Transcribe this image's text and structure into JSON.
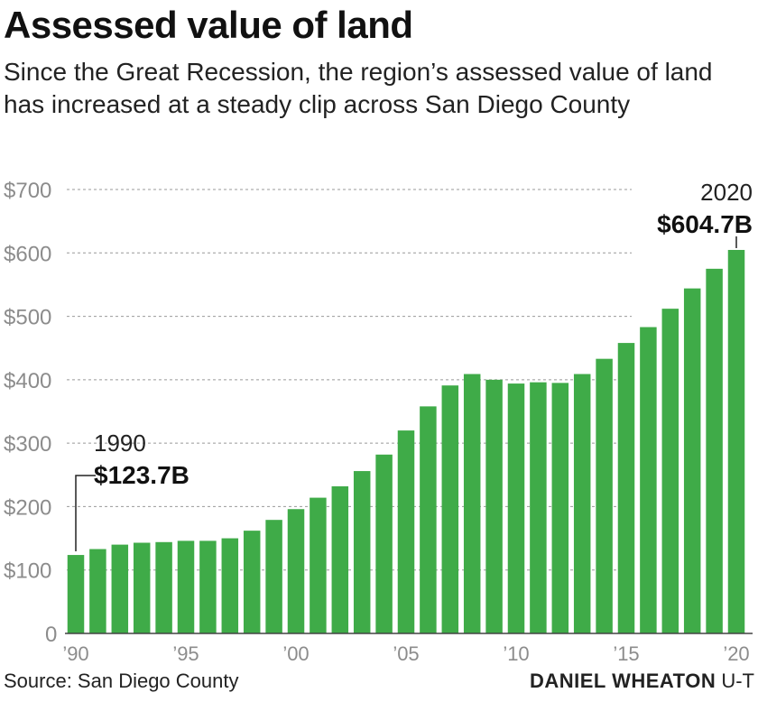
{
  "header": {
    "title": "Assessed value of land",
    "subtitle": "Since the Great Recession, the region’s assessed value of land has increased at a steady clip across San Diego County"
  },
  "footer": {
    "source": "Source: San Diego County",
    "credit_name": "DANIEL WHEATON",
    "credit_org": "U-T"
  },
  "colors": {
    "bar": "#3fab48",
    "grid": "#999999",
    "axis_text": "#8c8c8c"
  },
  "chart_data": {
    "type": "bar",
    "title": "Assessed value of land",
    "xlabel": "",
    "ylabel": "",
    "ylim": [
      0,
      700
    ],
    "yticks": [
      0,
      100,
      200,
      300,
      400,
      500,
      600,
      700
    ],
    "ytick_labels": [
      "0",
      "$100",
      "$200",
      "$300",
      "$400",
      "$500",
      "$600",
      "$700"
    ],
    "categories": [
      1990,
      1991,
      1992,
      1993,
      1994,
      1995,
      1996,
      1997,
      1998,
      1999,
      2000,
      2001,
      2002,
      2003,
      2004,
      2005,
      2006,
      2007,
      2008,
      2009,
      2010,
      2011,
      2012,
      2013,
      2014,
      2015,
      2016,
      2017,
      2018,
      2019,
      2020
    ],
    "xtick_labels": [
      {
        "year": 1990,
        "label": "’90"
      },
      {
        "year": 1995,
        "label": "’95"
      },
      {
        "year": 2000,
        "label": "’00"
      },
      {
        "year": 2005,
        "label": "’05"
      },
      {
        "year": 2010,
        "label": "’10"
      },
      {
        "year": 2015,
        "label": "’15"
      },
      {
        "year": 2020,
        "label": "’20"
      }
    ],
    "values": [
      123.7,
      133,
      140,
      143,
      144,
      146,
      146,
      150,
      162,
      179,
      196,
      214,
      232,
      256,
      282,
      320,
      358,
      391,
      409,
      400,
      394,
      396,
      395,
      409,
      433,
      458,
      483,
      512,
      544,
      575,
      604.7
    ],
    "grid": true,
    "annotations": [
      {
        "year": 1990,
        "year_label": "1990",
        "value_label": "$123.7B"
      },
      {
        "year": 2020,
        "year_label": "2020",
        "value_label": "$604.7B"
      }
    ]
  }
}
